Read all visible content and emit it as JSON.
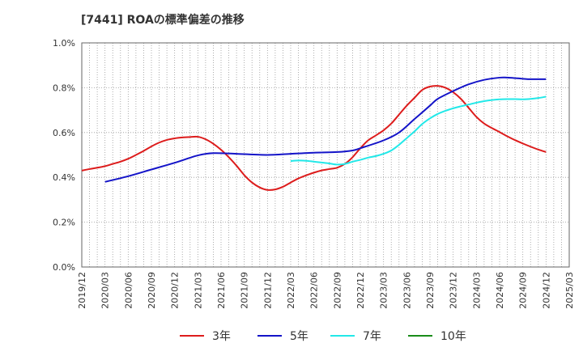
{
  "title": "[7441]  ROAの標準偏差の推移",
  "chart_data": {
    "type": "line",
    "title": "[7441]  ROAの標準偏差の推移",
    "xlabel": "",
    "ylabel": "",
    "ylim": [
      0,
      1.0
    ],
    "yticks": [
      "0.0%",
      "0.2%",
      "0.4%",
      "0.6%",
      "0.8%",
      "1.0%"
    ],
    "xticks": [
      "2019/12",
      "2020/03",
      "2020/06",
      "2020/09",
      "2020/12",
      "2021/03",
      "2021/06",
      "2021/09",
      "2021/12",
      "2022/03",
      "2022/06",
      "2022/09",
      "2022/12",
      "2023/03",
      "2023/06",
      "2023/09",
      "2023/12",
      "2024/03",
      "2024/06",
      "2024/09",
      "2024/12",
      "2025/03"
    ],
    "grid": true,
    "legend_position": "bottom",
    "series": [
      {
        "name": "3年",
        "color": "#dd1c1c",
        "x": [
          "2019/12",
          "2020/01",
          "2020/02",
          "2020/03",
          "2020/04",
          "2020/05",
          "2020/06",
          "2020/07",
          "2020/08",
          "2020/09",
          "2020/10",
          "2020/11",
          "2020/12",
          "2021/01",
          "2021/02",
          "2021/03",
          "2021/04",
          "2021/05",
          "2021/06",
          "2021/07",
          "2021/08",
          "2021/09",
          "2021/10",
          "2021/11",
          "2021/12",
          "2022/01",
          "2022/02",
          "2022/03",
          "2022/04",
          "2022/05",
          "2022/06",
          "2022/07",
          "2022/08",
          "2022/09",
          "2022/10",
          "2022/11",
          "2022/12",
          "2023/01",
          "2023/02",
          "2023/03",
          "2023/04",
          "2023/05",
          "2023/06",
          "2023/07",
          "2023/08",
          "2023/09",
          "2023/10",
          "2023/11",
          "2023/12",
          "2024/01",
          "2024/02",
          "2024/03",
          "2024/04",
          "2024/05",
          "2024/06",
          "2024/07",
          "2024/08",
          "2024/09",
          "2024/10",
          "2024/11",
          "2024/12"
        ],
        "values": [
          0.43,
          0.437,
          0.443,
          0.45,
          0.46,
          0.47,
          0.483,
          0.5,
          0.518,
          0.538,
          0.555,
          0.567,
          0.574,
          0.578,
          0.58,
          0.581,
          0.57,
          0.55,
          0.523,
          0.49,
          0.452,
          0.41,
          0.377,
          0.355,
          0.344,
          0.346,
          0.358,
          0.377,
          0.395,
          0.409,
          0.421,
          0.431,
          0.437,
          0.443,
          0.46,
          0.49,
          0.53,
          0.565,
          0.587,
          0.61,
          0.64,
          0.68,
          0.72,
          0.755,
          0.79,
          0.805,
          0.808,
          0.8,
          0.78,
          0.75,
          0.71,
          0.67,
          0.64,
          0.62,
          0.602,
          0.583,
          0.566,
          0.551,
          0.537,
          0.524,
          0.513
        ]
      },
      {
        "name": "5年",
        "color": "#1414c8",
        "x": [
          "2020/03",
          "2020/06",
          "2020/09",
          "2020/12",
          "2021/03",
          "2021/05",
          "2021/08",
          "2021/12",
          "2022/03",
          "2022/06",
          "2022/09",
          "2022/11",
          "2022/12",
          "2023/03",
          "2023/05",
          "2023/07",
          "2023/09",
          "2023/10",
          "2023/12",
          "2024/02",
          "2024/04",
          "2024/06",
          "2024/07",
          "2024/09",
          "2024/10",
          "2024/12"
        ],
        "values": [
          0.38,
          0.405,
          0.435,
          0.465,
          0.498,
          0.508,
          0.505,
          0.5,
          0.505,
          0.51,
          0.513,
          0.52,
          0.53,
          0.565,
          0.6,
          0.66,
          0.72,
          0.75,
          0.785,
          0.815,
          0.835,
          0.845,
          0.845,
          0.84,
          0.838,
          0.838
        ]
      },
      {
        "name": "7年",
        "color": "#22e8e8",
        "x": [
          "2022/03",
          "2022/04",
          "2022/05",
          "2022/06",
          "2022/07",
          "2022/08",
          "2022/09",
          "2022/10",
          "2022/11",
          "2022/12",
          "2023/01",
          "2023/02",
          "2023/03",
          "2023/04",
          "2023/05",
          "2023/06",
          "2023/07",
          "2023/08",
          "2023/09",
          "2023/10",
          "2023/11",
          "2023/12",
          "2024/01",
          "2024/02",
          "2024/03",
          "2024/04",
          "2024/05",
          "2024/06",
          "2024/07",
          "2024/08",
          "2024/09",
          "2024/10",
          "2024/11",
          "2024/12"
        ],
        "values": [
          0.473,
          0.475,
          0.474,
          0.47,
          0.466,
          0.462,
          0.457,
          0.46,
          0.47,
          0.478,
          0.488,
          0.495,
          0.505,
          0.52,
          0.545,
          0.575,
          0.605,
          0.638,
          0.663,
          0.683,
          0.697,
          0.708,
          0.717,
          0.725,
          0.733,
          0.74,
          0.745,
          0.748,
          0.749,
          0.749,
          0.748,
          0.75,
          0.754,
          0.76
        ]
      },
      {
        "name": "10年",
        "color": "#1a8c1a",
        "x": [],
        "values": []
      }
    ]
  }
}
